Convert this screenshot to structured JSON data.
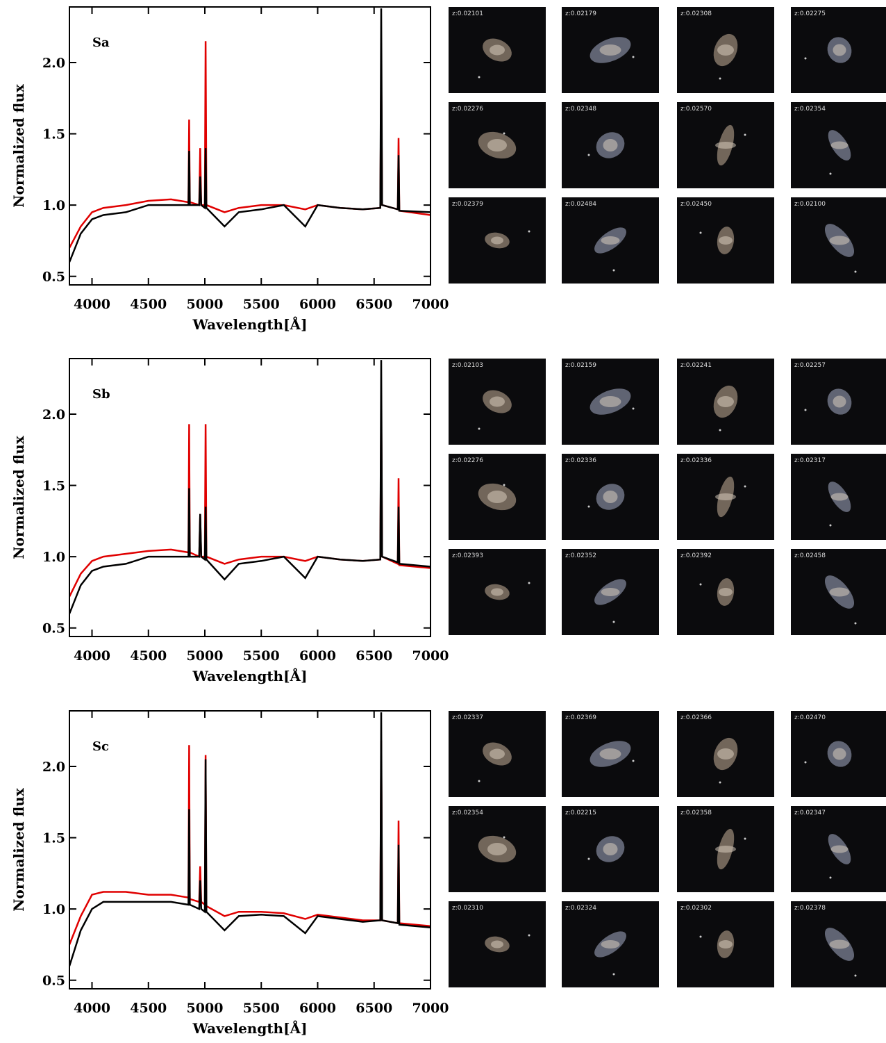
{
  "chart_data": [
    {
      "type": "line",
      "annotation": "Sa",
      "xlabel": "Wavelength[Å]",
      "ylabel": "Normalized flux",
      "xlim": [
        3800,
        7000
      ],
      "ylim": [
        0.44,
        2.39
      ],
      "xticks": [
        4000,
        4500,
        5000,
        5500,
        6000,
        6500,
        7000
      ],
      "yticks": [
        0.5,
        {
          "value": 1,
          "label": "1.0"
        },
        1.5,
        {
          "value": 2,
          "label": "2.0"
        }
      ],
      "x": [
        3800,
        3900,
        4000,
        4100,
        4300,
        4500,
        4700,
        4855,
        4861,
        4867,
        4950,
        4959,
        4968,
        5000,
        5007,
        5014,
        5175,
        5300,
        5500,
        5700,
        5890,
        6000,
        6200,
        6400,
        6555,
        6563,
        6571,
        6710,
        6717,
        6724,
        7000
      ],
      "series": [
        {
          "color": "#e00000",
          "values": [
            0.7,
            0.85,
            0.95,
            0.98,
            1.0,
            1.03,
            1.04,
            1.02,
            1.6,
            1.02,
            1.0,
            1.4,
            1.0,
            1.0,
            2.15,
            1.0,
            0.95,
            0.98,
            1.0,
            1.0,
            0.97,
            1.0,
            0.98,
            0.97,
            0.98,
            1.98,
            1.0,
            0.97,
            1.47,
            0.96,
            0.93
          ]
        },
        {
          "color": "#000000",
          "values": [
            0.6,
            0.8,
            0.9,
            0.93,
            0.95,
            1.0,
            1.0,
            1.0,
            1.38,
            1.0,
            1.0,
            1.2,
            1.0,
            0.98,
            1.4,
            0.98,
            0.85,
            0.95,
            0.97,
            1.0,
            0.85,
            1.0,
            0.98,
            0.97,
            0.98,
            2.38,
            1.0,
            0.97,
            1.35,
            0.96,
            0.95
          ]
        }
      ],
      "thumbnail_labels": [
        "z:0.02101",
        "z:0.02179",
        "z:0.02308",
        "z:0.02275",
        "z:0.02276",
        "z:0.02348",
        "z:0.02570",
        "z:0.02354",
        "z:0.02379",
        "z:0.02484",
        "z:0.02450",
        "z:0.02100"
      ]
    },
    {
      "type": "line",
      "annotation": "Sb",
      "xlabel": "Wavelength[Å]",
      "ylabel": "Normalized flux",
      "xlim": [
        3800,
        7000
      ],
      "ylim": [
        0.44,
        2.39
      ],
      "xticks": [
        4000,
        4500,
        5000,
        5500,
        6000,
        6500,
        7000
      ],
      "yticks": [
        0.5,
        {
          "value": 1,
          "label": "1.0"
        },
        1.5,
        {
          "value": 2,
          "label": "2.0"
        }
      ],
      "x": [
        3800,
        3900,
        4000,
        4100,
        4300,
        4500,
        4700,
        4855,
        4861,
        4867,
        4950,
        4959,
        4968,
        5000,
        5007,
        5014,
        5175,
        5300,
        5500,
        5700,
        5890,
        6000,
        6200,
        6400,
        6555,
        6563,
        6571,
        6710,
        6717,
        6724,
        7000
      ],
      "series": [
        {
          "color": "#e00000",
          "values": [
            0.72,
            0.88,
            0.97,
            1.0,
            1.02,
            1.04,
            1.05,
            1.03,
            1.93,
            1.03,
            1.0,
            1.3,
            1.0,
            1.0,
            1.93,
            1.0,
            0.95,
            0.98,
            1.0,
            1.0,
            0.97,
            1.0,
            0.98,
            0.97,
            0.98,
            2.08,
            1.0,
            0.95,
            1.55,
            0.94,
            0.92
          ]
        },
        {
          "color": "#000000",
          "values": [
            0.6,
            0.8,
            0.9,
            0.93,
            0.95,
            1.0,
            1.0,
            1.0,
            1.48,
            1.0,
            1.0,
            1.3,
            1.0,
            0.98,
            1.35,
            0.98,
            0.84,
            0.95,
            0.97,
            1.0,
            0.85,
            1.0,
            0.98,
            0.97,
            0.98,
            2.38,
            1.0,
            0.96,
            1.35,
            0.95,
            0.93
          ]
        }
      ],
      "thumbnail_labels": [
        "z:0.02103",
        "z:0.02159",
        "z:0.02241",
        "z:0.02257",
        "z:0.02276",
        "z:0.02336",
        "z:0.02336",
        "z:0.02317",
        "z:0.02393",
        "z:0.02352",
        "z:0.02392",
        "z:0.02458"
      ]
    },
    {
      "type": "line",
      "annotation": "Sc",
      "xlabel": "Wavelength[Å]",
      "ylabel": "Normalized flux",
      "xlim": [
        3800,
        7000
      ],
      "ylim": [
        0.44,
        2.39
      ],
      "xticks": [
        4000,
        4500,
        5000,
        5500,
        6000,
        6500,
        7000
      ],
      "yticks": [
        0.5,
        {
          "value": 1,
          "label": "1.0"
        },
        1.5,
        {
          "value": 2,
          "label": "2.0"
        }
      ],
      "x": [
        3800,
        3900,
        4000,
        4100,
        4300,
        4500,
        4700,
        4855,
        4861,
        4867,
        4950,
        4959,
        4968,
        5000,
        5007,
        5014,
        5175,
        5300,
        5500,
        5700,
        5890,
        6000,
        6200,
        6400,
        6555,
        6563,
        6571,
        6710,
        6717,
        6724,
        7000
      ],
      "series": [
        {
          "color": "#e00000",
          "values": [
            0.75,
            0.95,
            1.1,
            1.12,
            1.12,
            1.1,
            1.1,
            1.08,
            2.15,
            1.07,
            1.05,
            1.3,
            1.05,
            1.03,
            2.08,
            1.02,
            0.95,
            0.98,
            0.98,
            0.97,
            0.93,
            0.96,
            0.94,
            0.92,
            0.92,
            2.18,
            0.92,
            0.9,
            1.62,
            0.9,
            0.88
          ]
        },
        {
          "color": "#000000",
          "values": [
            0.6,
            0.85,
            1.0,
            1.05,
            1.05,
            1.05,
            1.05,
            1.03,
            1.7,
            1.03,
            1.0,
            1.2,
            1.0,
            0.98,
            2.05,
            0.98,
            0.85,
            0.95,
            0.96,
            0.95,
            0.83,
            0.95,
            0.93,
            0.91,
            0.92,
            2.38,
            0.92,
            0.9,
            1.45,
            0.89,
            0.87
          ]
        }
      ],
      "thumbnail_labels": [
        "z:0.02337",
        "z:0.02369",
        "z:0.02366",
        "z:0.02470",
        "z:0.02354",
        "z:0.02215",
        "z:0.02358",
        "z:0.02347",
        "z:0.02310",
        "z:0.02324",
        "z:0.02302",
        "z:0.02378"
      ]
    }
  ]
}
